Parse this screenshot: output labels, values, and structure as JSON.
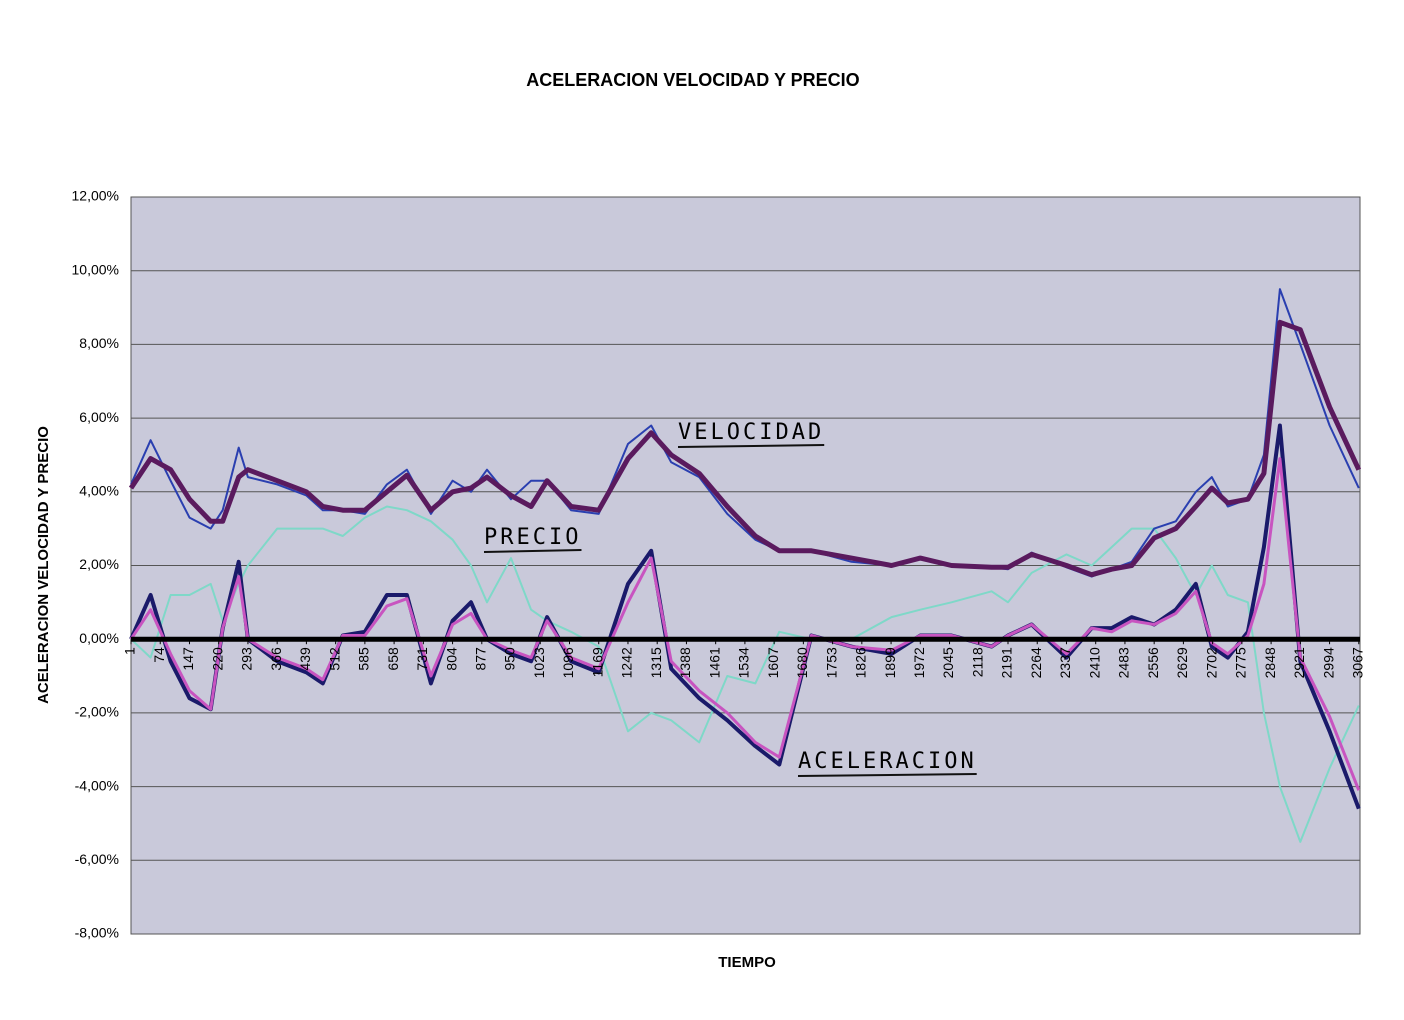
{
  "chart_data": {
    "type": "line",
    "title": "ACELERACION  VELOCIDAD Y PRECIO",
    "x_label": "TIEMPO",
    "y_label": "ACELERACION VELOCIDAD Y PRECIO",
    "annotations": [
      "VELOCIDAD",
      "PRECIO",
      "ACELERACION"
    ],
    "grid": true,
    "xlim": [
      1,
      3070
    ],
    "xticks": [
      1,
      74,
      147,
      220,
      293,
      366,
      439,
      512,
      585,
      658,
      731,
      804,
      877,
      950,
      1023,
      1096,
      1169,
      1242,
      1315,
      1388,
      1461,
      1534,
      1607,
      1680,
      1753,
      1826,
      1899,
      1972,
      2045,
      2118,
      2191,
      2264,
      2337,
      2410,
      2483,
      2556,
      2629,
      2702,
      2775,
      2848,
      2921,
      2994,
      3067
    ],
    "ylim": [
      -8,
      12
    ],
    "yticks": [
      {
        "value": -8,
        "label": "-8,00%"
      },
      {
        "value": -6,
        "label": "-6,00%"
      },
      {
        "value": -4,
        "label": "-4,00%"
      },
      {
        "value": -2,
        "label": "-2,00%"
      },
      {
        "value": 0,
        "label": "0,00%"
      },
      {
        "value": 2,
        "label": "2,00%"
      },
      {
        "value": 4,
        "label": "4,00%"
      },
      {
        "value": 6,
        "label": "6,00%"
      },
      {
        "value": 8,
        "label": "8,00%"
      },
      {
        "value": 10,
        "label": "10,00%"
      },
      {
        "value": 12,
        "label": "12,00%"
      }
    ],
    "x": [
      1,
      50,
      100,
      147,
      200,
      230,
      270,
      293,
      366,
      439,
      480,
      530,
      585,
      640,
      690,
      750,
      804,
      850,
      890,
      950,
      1000,
      1040,
      1100,
      1169,
      1242,
      1300,
      1350,
      1420,
      1490,
      1560,
      1620,
      1700,
      1800,
      1900,
      1972,
      2050,
      2150,
      2191,
      2250,
      2337,
      2400,
      2450,
      2500,
      2556,
      2610,
      2660,
      2700,
      2740,
      2790,
      2830,
      2870,
      2921,
      2994,
      3067
    ],
    "series": [
      {
        "color": "#7fd8c8",
        "values": [
          0,
          -0.5,
          1.2,
          1.2,
          1.5,
          0.5,
          1.5,
          2.0,
          3.0,
          3.0,
          3.0,
          2.8,
          3.3,
          3.6,
          3.5,
          3.2,
          2.7,
          2.0,
          1.0,
          2.2,
          0.8,
          0.5,
          0.2,
          -0.2,
          -2.5,
          -2.0,
          -2.2,
          -2.8,
          -1.0,
          -1.2,
          0.2,
          0,
          0,
          0.6,
          0.8,
          1.0,
          1.3,
          1.0,
          1.8,
          2.3,
          2.0,
          2.5,
          3.0,
          3.0,
          2.2,
          1.2,
          2.0,
          1.2,
          1.0,
          -2.0,
          -4.0,
          -5.5,
          -3.5,
          -1.8
        ]
      },
      {
        "color": "#2a3fb0",
        "values": [
          4.2,
          5.4,
          4.3,
          3.3,
          3.0,
          3.5,
          5.2,
          4.4,
          4.2,
          3.9,
          3.5,
          3.5,
          3.4,
          4.2,
          4.6,
          3.4,
          4.3,
          4.0,
          4.6,
          3.8,
          4.3,
          4.3,
          3.5,
          3.4,
          5.3,
          5.8,
          4.8,
          4.4,
          3.4,
          2.7,
          2.4,
          2.4,
          2.1,
          2.0,
          2.2,
          2.0,
          1.95,
          1.9,
          2.35,
          1.95,
          1.7,
          1.9,
          2.1,
          3.0,
          3.2,
          4.0,
          4.4,
          3.6,
          3.8,
          5.0,
          9.5,
          8.0,
          5.8,
          4.1
        ]
      },
      {
        "color": "#5a1a5e",
        "values": [
          4.1,
          4.9,
          4.6,
          3.8,
          3.2,
          3.2,
          4.4,
          4.6,
          4.3,
          4.0,
          3.6,
          3.5,
          3.5,
          4.0,
          4.45,
          3.5,
          4.0,
          4.1,
          4.4,
          3.9,
          3.6,
          4.3,
          3.6,
          3.5,
          4.9,
          5.6,
          5.0,
          4.5,
          3.6,
          2.8,
          2.4,
          2.4,
          2.2,
          2.0,
          2.2,
          2.0,
          1.95,
          1.95,
          2.3,
          2.0,
          1.75,
          1.9,
          2.0,
          2.75,
          3.0,
          3.6,
          4.1,
          3.7,
          3.8,
          4.5,
          8.6,
          8.4,
          6.3,
          4.6
        ]
      },
      {
        "color": "#1a1a6a",
        "values": [
          0,
          1.2,
          -0.6,
          -1.6,
          -1.9,
          0.3,
          2.1,
          0.0,
          -0.6,
          -0.9,
          -1.2,
          0.1,
          0.2,
          1.2,
          1.2,
          -1.2,
          0.5,
          1.0,
          0.0,
          -0.4,
          -0.6,
          0.6,
          -0.6,
          -0.9,
          1.5,
          2.4,
          -0.8,
          -1.6,
          -2.2,
          -2.9,
          -3.4,
          0.1,
          -0.2,
          -0.4,
          0.1,
          0.1,
          -0.2,
          0.1,
          0.4,
          -0.5,
          0.3,
          0.3,
          0.6,
          0.4,
          0.8,
          1.5,
          -0.2,
          -0.5,
          0.2,
          2.5,
          5.8,
          -0.6,
          -2.5,
          -4.6
        ]
      },
      {
        "color": "#c854c0",
        "values": [
          0,
          0.8,
          -0.4,
          -1.4,
          -1.9,
          0.3,
          1.7,
          0,
          -0.5,
          -0.8,
          -1.1,
          0.1,
          0.1,
          0.9,
          1.1,
          -1.0,
          0.4,
          0.7,
          0,
          -0.3,
          -0.5,
          0.5,
          -0.5,
          -0.8,
          1.0,
          2.2,
          -0.6,
          -1.4,
          -2.0,
          -2.8,
          -3.2,
          0.1,
          -0.2,
          -0.3,
          0.1,
          0.1,
          -0.2,
          0.1,
          0.4,
          -0.4,
          0.3,
          0.2,
          0.5,
          0.4,
          0.7,
          1.3,
          -0.1,
          -0.4,
          0.1,
          1.5,
          4.9,
          -0.5,
          -2.1,
          -4.1
        ]
      }
    ]
  }
}
